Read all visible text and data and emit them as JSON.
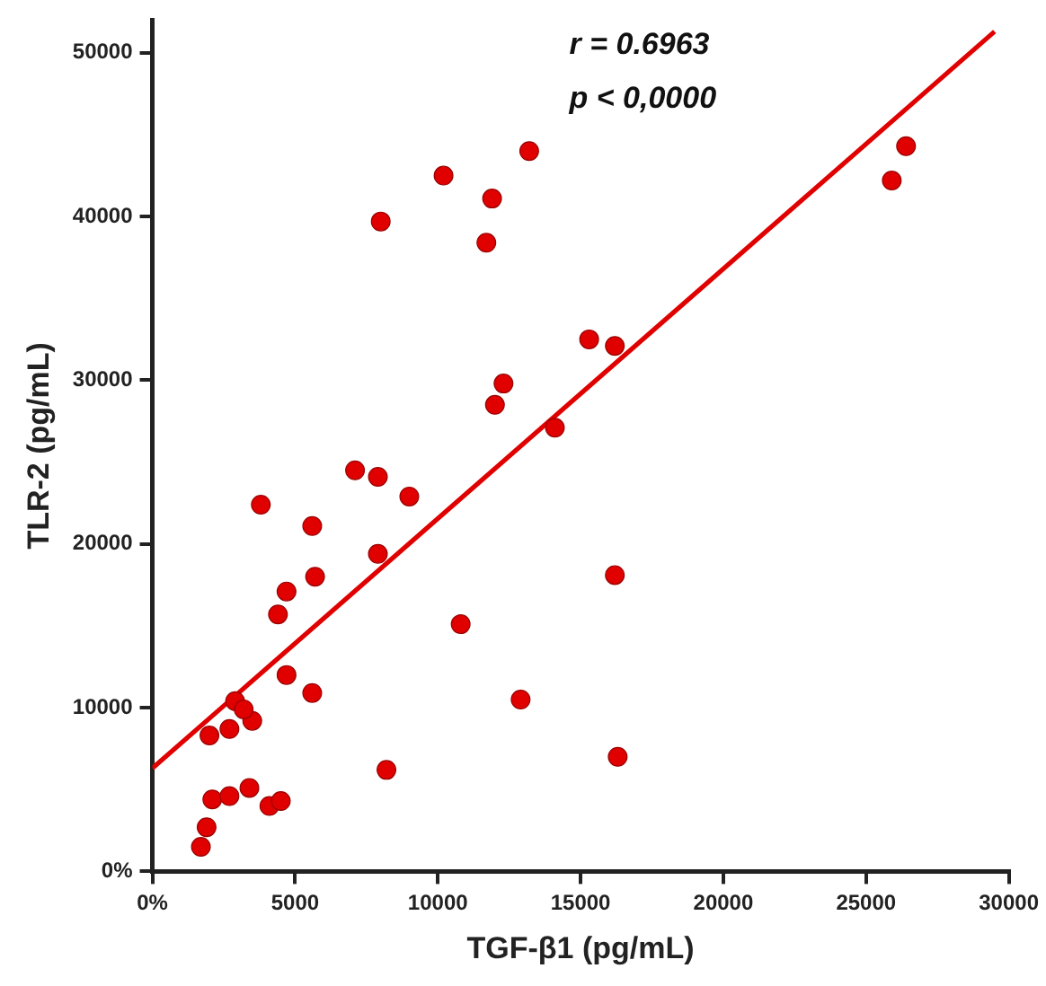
{
  "chart_data": {
    "type": "scatter",
    "xlabel": "TGF-β1 (pg/mL)",
    "ylabel": "TLR-2 (pg/mL)",
    "annotations": [
      "r = 0.6963",
      "p < 0,0000"
    ],
    "xlim": [
      0,
      30000
    ],
    "ylim": [
      0,
      52000
    ],
    "xticks": [
      {
        "value": 0,
        "label": "0%"
      },
      5000,
      10000,
      15000,
      20000,
      25000,
      30000
    ],
    "yticks": [
      {
        "value": 0,
        "label": "0%"
      },
      10000,
      20000,
      30000,
      40000,
      50000
    ],
    "grid": false,
    "legend": false,
    "series": [
      {
        "marker": "circle",
        "color": "#e00000",
        "x": [
          1700,
          1900,
          2100,
          2700,
          3400,
          4100,
          4500,
          2000,
          2700,
          3500,
          2900,
          3200,
          4700,
          5600,
          4400,
          4700,
          5700,
          5600,
          3800,
          7100,
          7900,
          9000,
          7900,
          10800,
          12900,
          8200,
          14100,
          8000,
          10200,
          11900,
          11700,
          13200,
          15300,
          12300,
          12000,
          16200,
          26400,
          25900,
          16200,
          16300
        ],
        "values": [
          1500,
          2700,
          4400,
          4600,
          5100,
          4000,
          4300,
          8300,
          8700,
          9200,
          10400,
          9900,
          12000,
          10900,
          15700,
          17100,
          18000,
          21100,
          22400,
          24500,
          24100,
          22900,
          19400,
          15100,
          10500,
          6200,
          27100,
          39700,
          42500,
          41100,
          38400,
          44000,
          32500,
          29800,
          28500,
          32100,
          44300,
          42200,
          18100,
          7000
        ]
      },
      {
        "type": "line",
        "color": "#e00000",
        "x": [
          0,
          29500
        ],
        "values": [
          6300,
          51300
        ]
      }
    ]
  }
}
